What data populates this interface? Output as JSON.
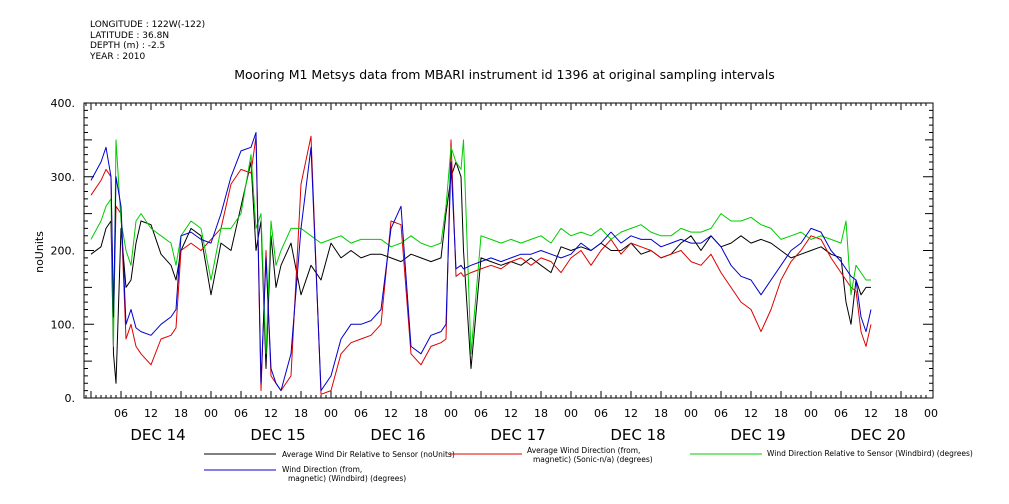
{
  "meta": {
    "longitude": "LONGITUDE : 122W(-122)",
    "latitude": "LATITUDE : 36.8N",
    "depth": "DEPTH (m) : -2.5",
    "year": "YEAR : 2010"
  },
  "chart_data": {
    "type": "line",
    "title": "Mooring M1 Metsys data from MBARI instrument id 1396 at original sampling intervals",
    "ylabel": "noUnits",
    "ylim": [
      0,
      400
    ],
    "yticks": [
      0,
      100,
      200,
      300,
      400
    ],
    "xlim": [
      0,
      156
    ],
    "x_unit": "hours from 00:00 DEC 14 2010",
    "hour_ticks": [
      "06",
      "12",
      "18",
      "00",
      "06",
      "12",
      "18",
      "00",
      "06",
      "12",
      "18",
      "00",
      "06",
      "12",
      "18",
      "00",
      "06",
      "12",
      "18",
      "00",
      "06",
      "12",
      "18",
      "00",
      "06",
      "12",
      "18",
      "00"
    ],
    "days": [
      "DEC 14",
      "DEC 15",
      "DEC 16",
      "DEC 17",
      "DEC 18",
      "DEC 19",
      "DEC 20"
    ],
    "series": [
      {
        "name": "Average Wind Dir Relative to Sensor (noUnits)",
        "color": "#000000",
        "x": [
          0,
          2,
          3,
          4,
          4.5,
          5,
          6,
          7,
          8,
          9,
          10,
          12,
          14,
          16,
          17,
          18,
          20,
          22,
          24,
          26,
          28,
          30,
          32,
          33,
          34,
          35,
          36,
          37,
          38,
          40,
          42,
          44,
          46,
          48,
          50,
          52,
          54,
          56,
          58,
          60,
          62,
          64,
          66,
          68,
          70,
          71,
          72,
          73,
          74,
          74.5,
          76,
          78,
          80,
          82,
          84,
          86,
          88,
          90,
          92,
          94,
          96,
          98,
          100,
          102,
          104,
          106,
          108,
          110,
          112,
          114,
          116,
          118,
          120,
          122,
          124,
          126,
          128,
          130,
          132,
          134,
          136,
          138,
          140,
          142,
          144,
          146,
          148,
          150,
          151,
          152,
          153,
          154,
          155,
          156
        ],
        "values": [
          195,
          205,
          230,
          240,
          60,
          20,
          230,
          150,
          160,
          210,
          240,
          235,
          195,
          180,
          160,
          200,
          230,
          220,
          140,
          210,
          200,
          260,
          320,
          200,
          240,
          40,
          220,
          150,
          180,
          210,
          140,
          180,
          160,
          210,
          190,
          200,
          190,
          195,
          195,
          190,
          185,
          195,
          190,
          185,
          190,
          250,
          300,
          320,
          300,
          200,
          40,
          190,
          185,
          180,
          185,
          180,
          190,
          180,
          170,
          205,
          200,
          205,
          200,
          210,
          200,
          200,
          210,
          195,
          200,
          190,
          195,
          210,
          220,
          200,
          220,
          205,
          210,
          220,
          210,
          215,
          210,
          200,
          190,
          195,
          200,
          205,
          195,
          190,
          130,
          100,
          160,
          140,
          150,
          150
        ]
      },
      {
        "name": "Average Wind Direction (from, magnetic) (Sonic-n/a) (degrees)",
        "color": "#dd0000",
        "x": [
          0,
          2,
          3,
          4,
          4.5,
          5,
          6,
          7,
          8,
          9,
          10,
          12,
          14,
          16,
          17,
          18,
          20,
          22,
          24,
          26,
          28,
          30,
          32,
          33,
          34,
          35,
          36,
          37,
          38,
          40,
          42,
          44,
          46,
          48,
          50,
          52,
          54,
          56,
          58,
          60,
          62,
          64,
          66,
          68,
          70,
          71,
          72,
          73,
          74,
          74.5,
          76,
          78,
          80,
          82,
          84,
          86,
          88,
          90,
          92,
          94,
          96,
          98,
          100,
          102,
          104,
          106,
          108,
          110,
          112,
          114,
          116,
          118,
          120,
          122,
          124,
          126,
          128,
          130,
          132,
          134,
          136,
          138,
          140,
          142,
          144,
          146,
          148,
          150,
          151,
          152,
          153,
          154,
          155,
          156
        ],
        "values": [
          275,
          295,
          310,
          300,
          100,
          260,
          250,
          80,
          100,
          70,
          60,
          45,
          80,
          85,
          95,
          200,
          210,
          200,
          215,
          230,
          290,
          310,
          305,
          355,
          10,
          200,
          30,
          20,
          10,
          30,
          290,
          355,
          5,
          10,
          60,
          75,
          80,
          85,
          100,
          240,
          235,
          60,
          45,
          70,
          75,
          80,
          350,
          165,
          170,
          165,
          170,
          175,
          180,
          175,
          185,
          190,
          180,
          190,
          185,
          170,
          190,
          200,
          180,
          200,
          215,
          195,
          210,
          205,
          200,
          190,
          195,
          200,
          185,
          180,
          195,
          170,
          150,
          130,
          120,
          90,
          120,
          160,
          185,
          200,
          220,
          215,
          190,
          170,
          160,
          150,
          145,
          90,
          70,
          100
        ]
      },
      {
        "name": "Wind Direction Relative to Sensor (Windbird) (degrees)",
        "color": "#00cc00",
        "x": [
          0,
          2,
          3,
          4,
          4.5,
          5,
          6,
          7,
          8,
          9,
          10,
          12,
          14,
          16,
          17,
          18,
          20,
          22,
          24,
          26,
          28,
          30,
          32,
          33,
          34,
          35,
          36,
          37,
          38,
          40,
          42,
          44,
          46,
          48,
          50,
          52,
          54,
          56,
          58,
          60,
          62,
          64,
          66,
          68,
          70,
          71,
          72,
          73,
          74,
          74.5,
          76,
          78,
          80,
          82,
          84,
          86,
          88,
          90,
          92,
          94,
          96,
          98,
          100,
          102,
          104,
          106,
          108,
          110,
          112,
          114,
          116,
          118,
          120,
          122,
          124,
          126,
          128,
          130,
          132,
          134,
          136,
          138,
          140,
          142,
          144,
          146,
          148,
          150,
          151,
          152,
          153,
          154,
          155,
          156
        ],
        "values": [
          215,
          240,
          260,
          270,
          70,
          350,
          240,
          200,
          180,
          240,
          250,
          230,
          220,
          210,
          180,
          220,
          240,
          230,
          160,
          230,
          230,
          250,
          330,
          230,
          250,
          60,
          240,
          180,
          200,
          230,
          230,
          220,
          210,
          215,
          220,
          210,
          215,
          215,
          215,
          205,
          210,
          220,
          210,
          205,
          210,
          260,
          340,
          320,
          310,
          350,
          60,
          220,
          215,
          210,
          215,
          210,
          215,
          220,
          210,
          230,
          220,
          225,
          220,
          230,
          215,
          225,
          230,
          235,
          225,
          220,
          220,
          230,
          225,
          225,
          230,
          250,
          240,
          240,
          245,
          235,
          230,
          215,
          220,
          225,
          215,
          220,
          215,
          210,
          240,
          140,
          180,
          170,
          160,
          160
        ]
      },
      {
        "name": "Wind Direction (from, magnetic) (Windbird) (degrees)",
        "color": "#0000cc",
        "x": [
          0,
          2,
          3,
          4,
          4.5,
          5,
          6,
          7,
          8,
          9,
          10,
          12,
          14,
          16,
          17,
          18,
          20,
          22,
          24,
          26,
          28,
          30,
          32,
          33,
          34,
          35,
          36,
          37,
          38,
          40,
          42,
          44,
          46,
          48,
          50,
          52,
          54,
          56,
          58,
          60,
          62,
          64,
          66,
          68,
          70,
          71,
          72,
          73,
          74,
          74.5,
          76,
          78,
          80,
          82,
          84,
          86,
          88,
          90,
          92,
          94,
          96,
          98,
          100,
          102,
          104,
          106,
          108,
          110,
          112,
          114,
          116,
          118,
          120,
          122,
          124,
          126,
          128,
          130,
          132,
          134,
          136,
          138,
          140,
          142,
          144,
          146,
          148,
          150,
          151,
          152,
          153,
          154,
          155,
          156
        ],
        "values": [
          295,
          320,
          340,
          300,
          110,
          300,
          260,
          100,
          120,
          95,
          90,
          85,
          100,
          110,
          120,
          220,
          225,
          215,
          210,
          250,
          300,
          335,
          340,
          360,
          20,
          190,
          40,
          20,
          10,
          60,
          230,
          340,
          10,
          30,
          80,
          100,
          100,
          105,
          120,
          230,
          260,
          70,
          60,
          85,
          90,
          100,
          320,
          175,
          180,
          175,
          180,
          185,
          190,
          185,
          190,
          195,
          195,
          200,
          195,
          190,
          195,
          210,
          200,
          210,
          225,
          210,
          220,
          215,
          215,
          205,
          210,
          215,
          210,
          210,
          220,
          205,
          180,
          165,
          160,
          140,
          160,
          180,
          200,
          210,
          230,
          225,
          200,
          185,
          175,
          165,
          160,
          110,
          90,
          120
        ]
      }
    ]
  },
  "legend": {
    "black_line1": "Average Wind Dir Relative to Sensor (noUnits)",
    "red_line1": "Average Wind Direction (from,",
    "red_line2": "magnetic) (Sonic-n/a) (degrees)",
    "green_line1": "Wind Direction Relative to Sensor (Windbird) (degrees)",
    "blue_line1": "Wind Direction (from,",
    "blue_line2": "magnetic) (Windbird) (degrees)"
  }
}
